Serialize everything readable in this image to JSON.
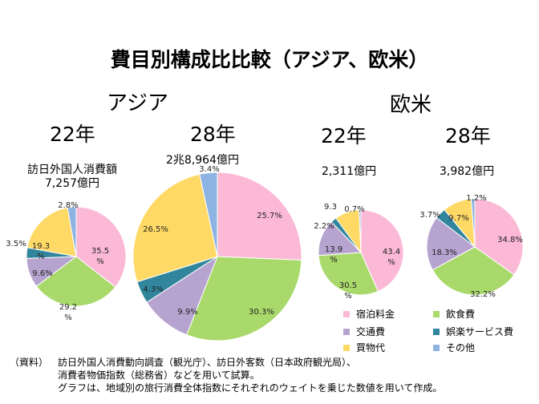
{
  "title": "費目別構成比比較（アジア、欧米）",
  "regions": [
    {
      "name": "アジア"
    },
    {
      "name": "欧米"
    }
  ],
  "colors": {
    "宿泊料金": "#fbb9d6",
    "飲食費": "#a9d96b",
    "交通費": "#b6a3cf",
    "娯楽サービス費": "#31859c",
    "買物代": "#ffd966",
    "その他": "#8db3e2"
  },
  "totals": {
    "asia22_label": "訪日外国人消費額",
    "asia22_value": "7,257億円",
    "asia28": "2兆8,964億円",
    "eu22": "2,311億円",
    "eu28": "3,982億円"
  },
  "chart_data": [
    {
      "type": "pie",
      "region": "アジア",
      "year": "22年",
      "categories": [
        "宿泊料金",
        "飲食費",
        "交通費",
        "娯楽サービス費",
        "買物代",
        "その他"
      ],
      "values": [
        35.5,
        29.2,
        9.6,
        3.5,
        19.3,
        2.8
      ],
      "labels": [
        "35.5\n%",
        "29.2\n%",
        "9.6%",
        "3.5%",
        "19.3\n%",
        "2.8%"
      ]
    },
    {
      "type": "pie",
      "region": "アジア",
      "year": "28年",
      "categories": [
        "宿泊料金",
        "飲食費",
        "交通費",
        "娯楽サービス費",
        "買物代",
        "その他"
      ],
      "values": [
        25.7,
        30.3,
        9.9,
        4.3,
        26.5,
        3.4
      ],
      "labels": [
        "25.7%",
        "30.3%",
        "9.9%",
        "4.3%",
        "26.5%",
        "3.4%"
      ]
    },
    {
      "type": "pie",
      "region": "欧米",
      "year": "22年",
      "categories": [
        "宿泊料金",
        "飲食費",
        "交通費",
        "娯楽サービス費",
        "買物代",
        "その他"
      ],
      "values": [
        43.4,
        30.5,
        13.9,
        2.2,
        9.3,
        0.7
      ],
      "labels": [
        "43.4\n%",
        "30.5\n%",
        "13.9\n%",
        "2.2%",
        "9.3",
        "0.7%"
      ]
    },
    {
      "type": "pie",
      "region": "欧米",
      "year": "28年",
      "categories": [
        "宿泊料金",
        "飲食費",
        "交通費",
        "娯楽サービス費",
        "買物代",
        "その他"
      ],
      "values": [
        34.8,
        32.2,
        18.3,
        3.7,
        9.7,
        1.2
      ],
      "labels": [
        "34.8%",
        "32.2%",
        "18.3%",
        "3.7%",
        "9.7%",
        "1.2%"
      ]
    }
  ],
  "legend": [
    "宿泊料金",
    "飲食費",
    "交通費",
    "娯楽サービス費",
    "買物代",
    "その他"
  ],
  "notes": {
    "label": "（資料）",
    "line1": "訪日外国人消費動向調査（観光庁）、訪日外客数（日本政府観光局）、",
    "line2": "消費者物価指数（総務省）などを用いて試算。",
    "line3": "グラフは、地域別の旅行消費全体指数にそれぞれのウェイトを乗じた数値を用いて作成。"
  }
}
